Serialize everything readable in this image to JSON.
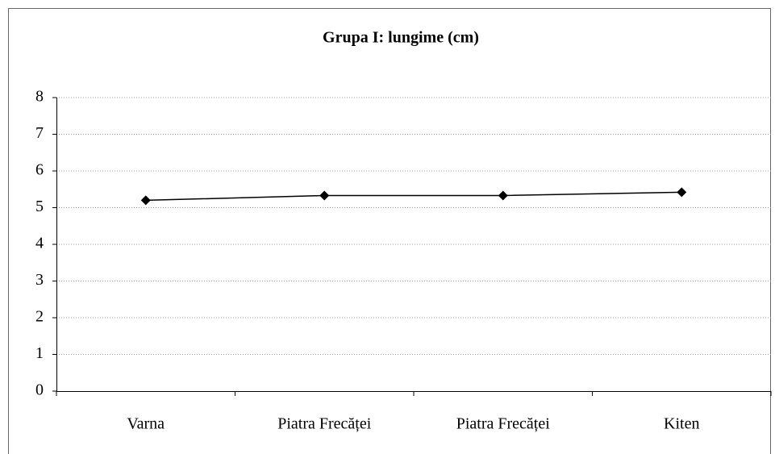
{
  "chart_data": {
    "type": "line",
    "title": "Grupa I: lungime (cm)",
    "categories": [
      "Varna",
      "Piatra Frecăței",
      "Piatra Frecăței",
      "Kiten"
    ],
    "series": [
      {
        "name": "lungime",
        "color": "#000000",
        "values": [
          5.2,
          5.33,
          5.33,
          5.42
        ]
      }
    ],
    "ylim": [
      0,
      8
    ],
    "yticks": [
      0,
      1,
      2,
      3,
      4,
      5,
      6,
      7,
      8
    ],
    "grid": true
  }
}
